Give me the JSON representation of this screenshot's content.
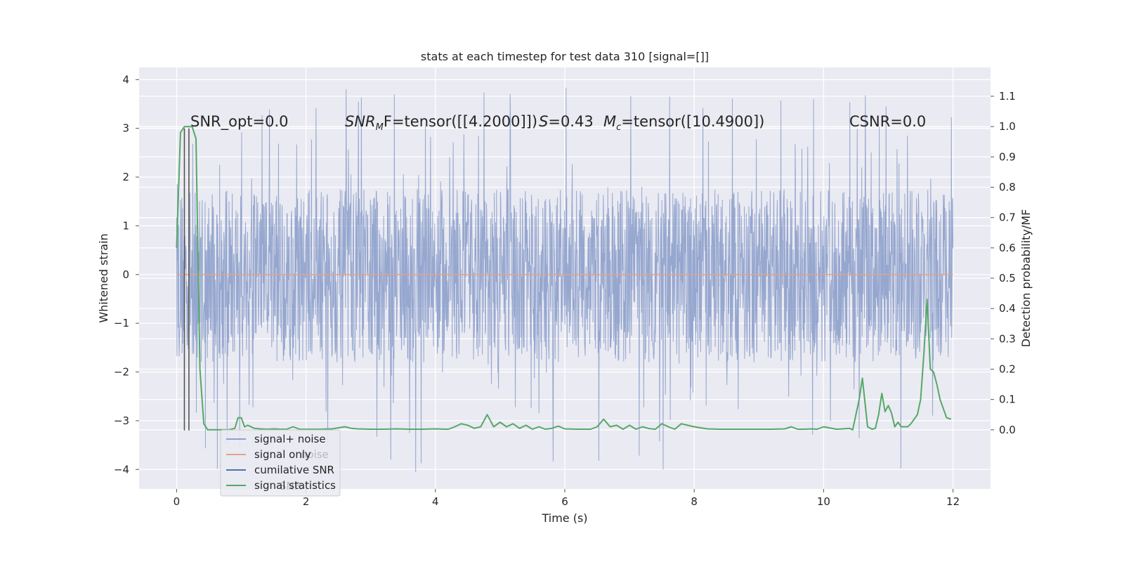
{
  "figure": {
    "title": "stats at each timestep for test data 310 [signal=[]]",
    "background": "#ffffff",
    "axes_background": "#eaeaf2",
    "grid_color": "#ffffff"
  },
  "annotations": {
    "snr_opt": "SNR_opt=0.0",
    "snr_mf_prefix": "SNR",
    "snr_mf_sub": "M",
    "snr_mf_suffix": "F=tensor([[4.2000]])",
    "s_prefix": "S",
    "s_suffix": "=0.43",
    "mc_prefix": "M",
    "mc_sub": "c",
    "mc_suffix": "=tensor([10.4900])",
    "csnr": "CSNR=0.0"
  },
  "legend": {
    "placement": "lower left",
    "items": [
      {
        "label": "signal+ noise",
        "color": "#8da0cb"
      },
      {
        "label": "signal only",
        "color": "#e1a38a"
      },
      {
        "label": "cumilative SNR",
        "color": "#4c72b0"
      },
      {
        "label": "signal statistics",
        "color": "#55a868"
      }
    ],
    "ghost_text": [
      "noise",
      "SNR"
    ]
  },
  "chart_data": {
    "type": "line",
    "title": "stats at each timestep for test data 310 [signal=[]]",
    "xlabel": "Time (s)",
    "ylabel": "Whitened strain",
    "y2label": "Detection probability/MF",
    "xlim": [
      -0.58,
      12.58
    ],
    "ylim": [
      -4.4,
      4.25
    ],
    "y2lim": [
      -0.195,
      1.195
    ],
    "grid": true,
    "xticks": [
      0,
      2,
      4,
      6,
      8,
      10,
      12
    ],
    "xtick_labels": [
      "0",
      "2",
      "4",
      "6",
      "8",
      "10",
      "12"
    ],
    "yticks": [
      4,
      3,
      2,
      1,
      0,
      -1,
      -2,
      -3,
      -4
    ],
    "ytick_labels": [
      "4",
      "3",
      "2",
      "1",
      "0",
      "−1",
      "−2",
      "−3",
      "−4"
    ],
    "y2ticks": [
      1.1,
      1.0,
      0.9,
      0.8,
      0.7,
      0.6,
      0.5,
      0.4,
      0.3,
      0.2,
      0.1,
      0.0
    ],
    "y2tick_labels": [
      "1.1",
      "1.0",
      "0.9",
      "0.8",
      "0.7",
      "0.6",
      "0.5",
      "0.4",
      "0.3",
      "0.2",
      "0.1",
      "0.0"
    ],
    "series": [
      {
        "name": "signal+ noise",
        "axis": "left",
        "color": "#8da0cb",
        "x_range": [
          0,
          12
        ],
        "envelope": {
          "typical_max": 1.75,
          "typical_min": -1.8,
          "peak_max": 3.87,
          "peak_min": -4.1
        }
      },
      {
        "name": "signal only",
        "axis": "left",
        "color": "#e1a38a",
        "x": [
          0,
          12
        ],
        "y": [
          0,
          0
        ]
      },
      {
        "name": "cumilative SNR",
        "axis": "left",
        "color": "#555555",
        "vertical_lines_x": [
          0.12,
          0.19
        ],
        "y_bottom": -3.2,
        "y_top": 3.0
      },
      {
        "name": "signal statistics",
        "axis": "right",
        "color": "#55a868",
        "x": [
          0,
          0.06,
          0.12,
          0.18,
          0.24,
          0.3,
          0.36,
          0.42,
          0.48,
          0.55,
          0.6,
          0.7,
          0.8,
          0.9,
          0.95,
          1.0,
          1.05,
          1.1,
          1.2,
          1.3,
          1.4,
          1.5,
          1.6,
          1.7,
          1.8,
          1.9,
          2.0,
          2.2,
          2.4,
          2.6,
          2.7,
          2.8,
          3.0,
          3.2,
          3.4,
          3.6,
          3.8,
          4.0,
          4.2,
          4.3,
          4.4,
          4.5,
          4.6,
          4.7,
          4.8,
          4.9,
          5.0,
          5.1,
          5.2,
          5.3,
          5.4,
          5.5,
          5.6,
          5.7,
          5.8,
          5.9,
          6.0,
          6.2,
          6.4,
          6.5,
          6.6,
          6.7,
          6.8,
          6.9,
          7.0,
          7.1,
          7.2,
          7.3,
          7.4,
          7.5,
          7.6,
          7.7,
          7.8,
          7.9,
          8.0,
          8.2,
          8.4,
          8.6,
          8.8,
          9.0,
          9.2,
          9.4,
          9.5,
          9.6,
          9.7,
          9.8,
          9.9,
          10.0,
          10.2,
          10.3,
          10.4,
          10.45,
          10.55,
          10.6,
          10.68,
          10.75,
          10.8,
          10.85,
          10.9,
          10.95,
          11.0,
          11.05,
          11.1,
          11.15,
          11.2,
          11.3,
          11.35,
          11.45,
          11.5,
          11.55,
          11.6,
          11.65,
          11.7,
          11.75,
          11.8,
          11.9,
          11.97
        ],
        "y": [
          0.6,
          0.98,
          1.0,
          1.0,
          1.0,
          0.96,
          0.2,
          0.02,
          0.0,
          0.0,
          0.0,
          0.0,
          0.0,
          0.005,
          0.04,
          0.04,
          0.01,
          0.015,
          0.005,
          0.003,
          0.002,
          0.003,
          0.002,
          0.002,
          0.01,
          0.002,
          0.002,
          0.002,
          0.003,
          0.01,
          0.005,
          0.003,
          0.002,
          0.002,
          0.003,
          0.002,
          0.002,
          0.003,
          0.002,
          0.01,
          0.02,
          0.015,
          0.005,
          0.01,
          0.05,
          0.01,
          0.025,
          0.01,
          0.02,
          0.005,
          0.015,
          0.002,
          0.01,
          0.002,
          0.005,
          0.012,
          0.003,
          0.002,
          0.002,
          0.01,
          0.035,
          0.01,
          0.015,
          0.002,
          0.015,
          0.002,
          0.01,
          0.004,
          0.002,
          0.02,
          0.01,
          0.002,
          0.02,
          0.015,
          0.01,
          0.003,
          0.002,
          0.002,
          0.002,
          0.002,
          0.002,
          0.003,
          0.01,
          0.002,
          0.002,
          0.003,
          0.002,
          0.01,
          0.002,
          0.003,
          0.005,
          0.0,
          0.1,
          0.17,
          0.01,
          0.002,
          0.005,
          0.05,
          0.12,
          0.06,
          0.08,
          0.055,
          0.01,
          0.025,
          0.01,
          0.01,
          0.02,
          0.05,
          0.1,
          0.25,
          0.43,
          0.2,
          0.19,
          0.15,
          0.1,
          0.04,
          0.035
        ]
      }
    ]
  }
}
